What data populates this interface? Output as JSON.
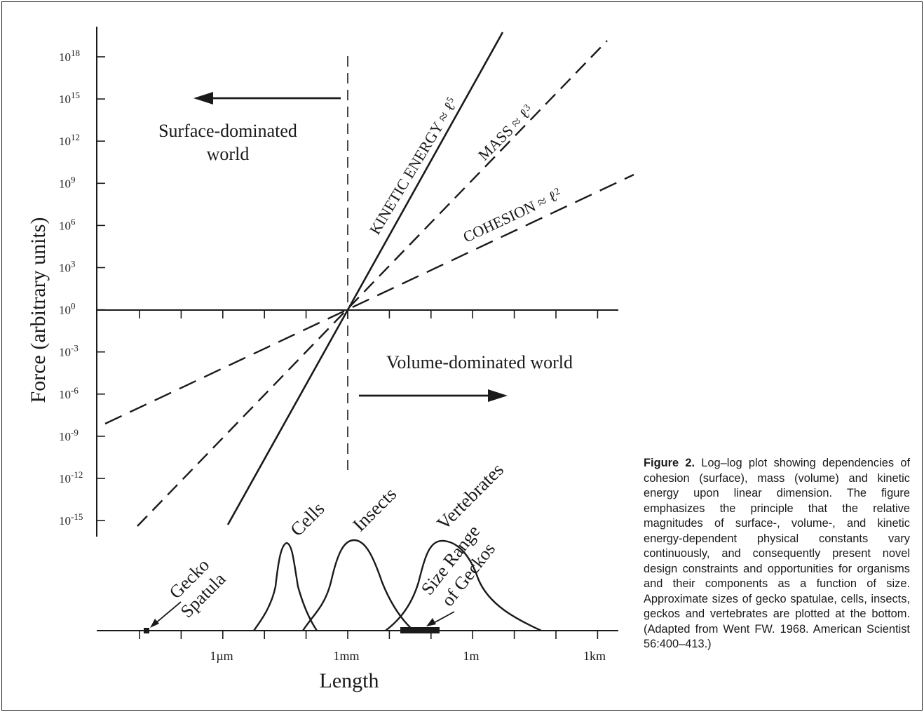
{
  "chart_data": {
    "type": "line",
    "xscale": "log",
    "yscale": "log",
    "xlabel": "Length",
    "ylabel": "Force (arbitrary units)",
    "x_ticks": [
      "1µm",
      "1mm",
      "1m",
      "1km"
    ],
    "y_ticks": [
      {
        "base": "10",
        "exp": "18"
      },
      {
        "base": "10",
        "exp": "15"
      },
      {
        "base": "10",
        "exp": "12"
      },
      {
        "base": "10",
        "exp": "9"
      },
      {
        "base": "10",
        "exp": "6"
      },
      {
        "base": "10",
        "exp": "3"
      },
      {
        "base": "10",
        "exp": "0"
      },
      {
        "base": "10",
        "exp": "-3"
      },
      {
        "base": "10",
        "exp": "-6"
      },
      {
        "base": "10",
        "exp": "-9"
      },
      {
        "base": "10",
        "exp": "-12"
      },
      {
        "base": "10",
        "exp": "-15"
      }
    ],
    "series": [
      {
        "name": "KINETIC ENERGY",
        "relation": "≈ ℓ",
        "exponent": "5",
        "style": "solid"
      },
      {
        "name": "MASS",
        "relation": "≈ ℓ",
        "exponent": "3",
        "style": "dashed"
      },
      {
        "name": "COHESION",
        "relation": "≈ ℓ",
        "exponent": "2",
        "style": "dashed"
      }
    ],
    "regions": {
      "left_line1": "Surface-dominated",
      "left_line2": "world",
      "right": "Volume-dominated world"
    },
    "size_distributions": [
      "Cells",
      "Insects",
      "Vertebrates"
    ],
    "annotations": {
      "spatula_line1": "Gecko",
      "spatula_line2": "Spatula",
      "geckos_line1": "Size Range",
      "geckos_line2": "of Geckos"
    }
  },
  "caption": {
    "label": "Figure 2.",
    "text": "Log–log plot showing dependencies of cohesion (surface), mass (volume) and kinetic energy upon linear dimension. The figure emphasizes the principle that the relative magnitudes of surface-, volume-, and kinetic energy-dependent physical constants vary continuously, and consequently present novel design constraints and opportunities for organisms and their components as a function of size. Approximate sizes of gecko spatulae, cells, insects, geckos and vertebrates are plotted at the bottom. (Adapted from Went FW. 1968. American Scientist 56:400–413.)"
  }
}
